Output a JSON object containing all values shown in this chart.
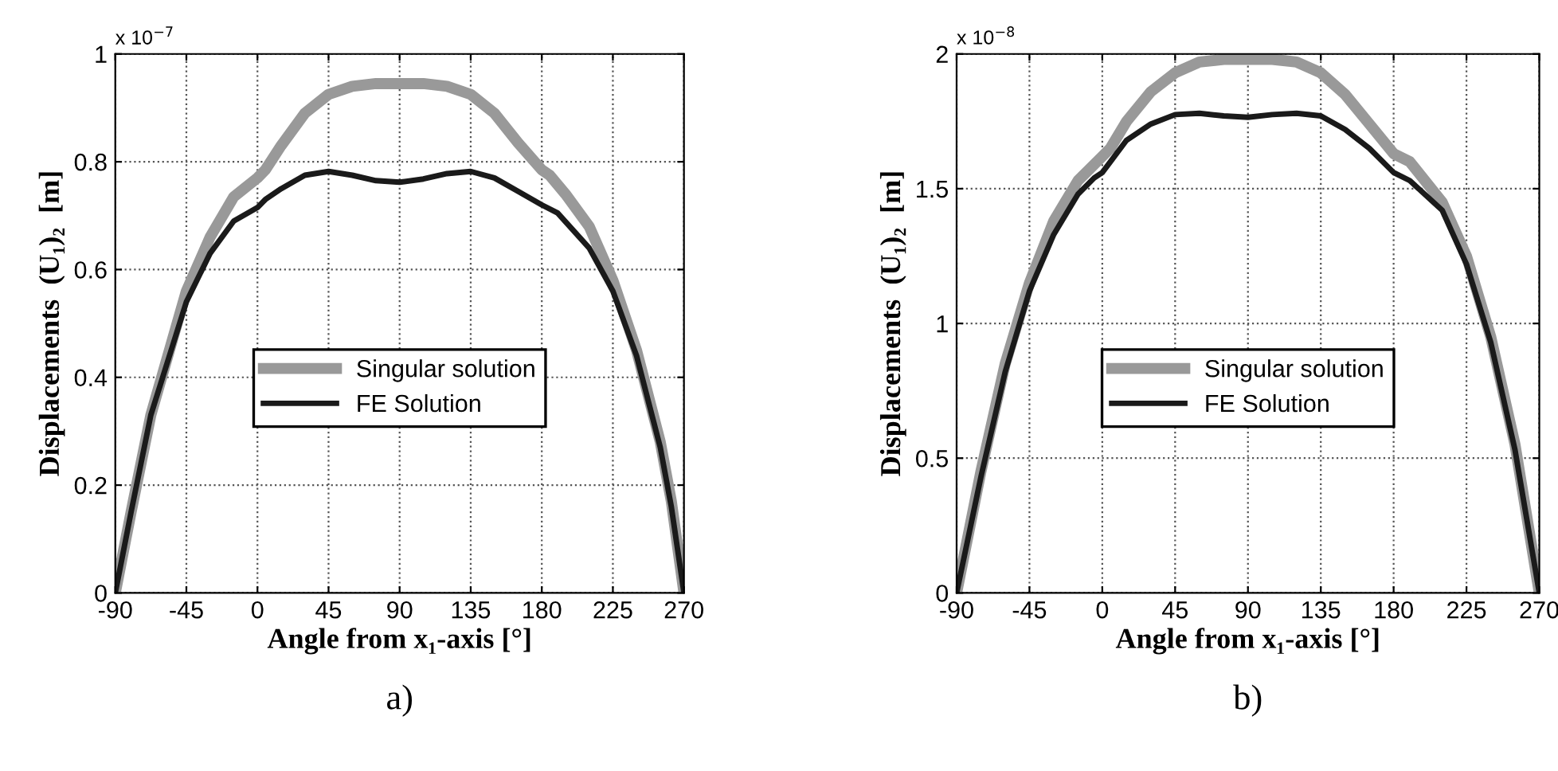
{
  "chart_data": [
    {
      "type": "line",
      "xlabel": "Angle from x₁-axis [°]",
      "ylabel": "Displacements  (U₁)₂  [m]",
      "annotations": [
        "x 10$^{−7}$",
        "a)"
      ],
      "xlim": [
        -90,
        270
      ],
      "xticks": [
        -90,
        -45,
        0,
        45,
        90,
        135,
        180,
        225,
        270
      ],
      "ylim": [
        0,
        1
      ],
      "yticks": [
        0,
        0.2,
        0.4,
        0.6,
        0.8,
        1
      ],
      "grid": true,
      "legend": "center",
      "line_style": "solid",
      "series": [
        {
          "name": "Singular solution",
          "color": "#999999",
          "x": [
            -90,
            -80,
            -67.5,
            -45,
            -30,
            -15,
            0,
            5,
            15,
            30,
            45,
            60,
            75,
            90,
            105,
            120,
            135,
            150,
            165,
            180,
            185,
            195,
            210,
            225,
            240,
            255,
            262,
            270
          ],
          "values": [
            0,
            0.15,
            0.33,
            0.56,
            0.66,
            0.735,
            0.77,
            0.785,
            0.83,
            0.89,
            0.925,
            0.94,
            0.945,
            0.945,
            0.945,
            0.94,
            0.925,
            0.89,
            0.835,
            0.785,
            0.775,
            0.74,
            0.68,
            0.58,
            0.45,
            0.28,
            0.17,
            0
          ]
        },
        {
          "name": "FE Solution",
          "color": "#1a1a1a",
          "x": [
            -90,
            -80,
            -67.5,
            -45,
            -30,
            -15,
            0,
            5,
            15,
            30,
            45,
            60,
            75,
            90,
            105,
            120,
            135,
            150,
            165,
            180,
            190,
            210,
            225,
            240,
            255,
            262,
            270
          ],
          "values": [
            0,
            0.15,
            0.33,
            0.54,
            0.63,
            0.69,
            0.715,
            0.73,
            0.75,
            0.775,
            0.782,
            0.775,
            0.765,
            0.762,
            0.768,
            0.778,
            0.782,
            0.77,
            0.745,
            0.72,
            0.705,
            0.64,
            0.56,
            0.44,
            0.27,
            0.16,
            0
          ]
        }
      ]
    },
    {
      "type": "line",
      "xlabel": "Angle from x₁-axis [°]",
      "ylabel": "Displacements  (U₁)₂  [m]",
      "annotations": [
        "x 10$^{−8}$",
        "b)"
      ],
      "xlim": [
        -90,
        270
      ],
      "xticks": [
        -90,
        -45,
        0,
        45,
        90,
        135,
        180,
        225,
        270
      ],
      "ylim": [
        0,
        2
      ],
      "yticks": [
        0,
        0.5,
        1,
        1.5,
        2
      ],
      "grid": true,
      "legend": "center",
      "line_style": "solid",
      "series": [
        {
          "name": "Singular solution",
          "color": "#999999",
          "x": [
            -90,
            -75,
            -60,
            -45,
            -30,
            -15,
            0,
            5,
            15,
            30,
            45,
            60,
            75,
            90,
            105,
            120,
            135,
            150,
            165,
            180,
            190,
            210,
            225,
            240,
            255,
            270
          ],
          "values": [
            0,
            0.45,
            0.85,
            1.15,
            1.38,
            1.53,
            1.62,
            1.65,
            1.75,
            1.86,
            1.93,
            1.97,
            1.98,
            1.98,
            1.98,
            1.97,
            1.93,
            1.85,
            1.74,
            1.63,
            1.6,
            1.45,
            1.25,
            0.95,
            0.55,
            0
          ]
        },
        {
          "name": "FE Solution",
          "color": "#1a1a1a",
          "x": [
            -90,
            -75,
            -60,
            -45,
            -30,
            -15,
            -5,
            0,
            5,
            15,
            30,
            45,
            60,
            75,
            90,
            105,
            120,
            135,
            150,
            165,
            180,
            190,
            210,
            225,
            240,
            255,
            270
          ],
          "values": [
            0,
            0.43,
            0.82,
            1.12,
            1.33,
            1.48,
            1.54,
            1.56,
            1.6,
            1.68,
            1.74,
            1.775,
            1.78,
            1.77,
            1.765,
            1.775,
            1.78,
            1.77,
            1.72,
            1.65,
            1.56,
            1.53,
            1.42,
            1.22,
            0.93,
            0.53,
            0
          ]
        }
      ]
    }
  ]
}
